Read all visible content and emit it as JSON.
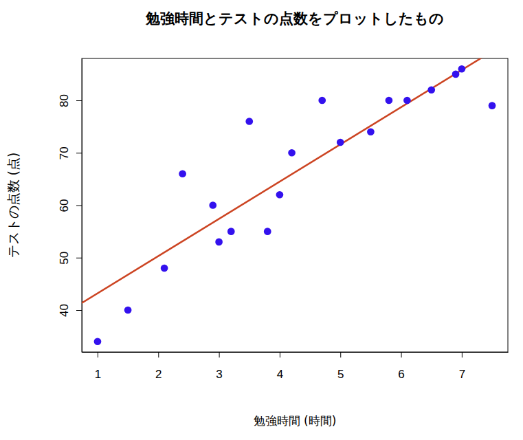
{
  "chart_data": {
    "type": "scatter",
    "title": "勉強時間とテストの点数をプロットしたもの",
    "x_label": "勉強時間 (時間)",
    "y_label": "テストの点数 (点)",
    "x": [
      1,
      1.5,
      2.1,
      2.4,
      2.9,
      3,
      3.2,
      3.5,
      3.8,
      4,
      4.2,
      4.7,
      5,
      5.5,
      5.8,
      6.1,
      6.5,
      6.9,
      7,
      7.5
    ],
    "values": [
      34,
      40,
      48,
      66,
      60,
      53,
      55,
      76,
      55,
      62,
      70,
      80,
      72,
      74,
      80,
      80,
      82,
      85,
      86,
      79
    ],
    "color": "#3311ee",
    "marker": "circle",
    "regression": {
      "intercept": 36.1,
      "slope": 7.1,
      "color": "#cc4422"
    },
    "xlim": [
      0.74,
      7.76
    ],
    "ylim": [
      32,
      88
    ],
    "xticks": [
      1,
      2,
      3,
      4,
      5,
      6,
      7
    ],
    "yticks": [
      40,
      50,
      60,
      70,
      80
    ]
  }
}
